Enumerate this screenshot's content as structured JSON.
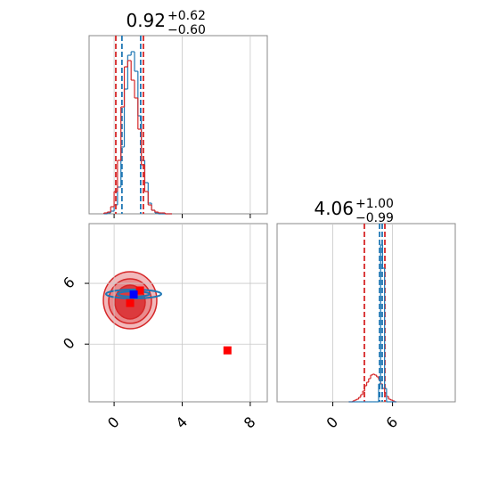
{
  "chart_data": [
    {
      "type": "histogram",
      "title": {
        "text": "0.92",
        "upper": "+0.62",
        "lower": "−0.60"
      },
      "bins": [
        -0.6,
        -0.4,
        -0.2,
        0,
        0.2,
        0.4,
        0.6,
        0.8,
        1.0,
        1.2,
        1.4,
        1.6,
        1.8,
        2.0,
        2.2,
        2.4,
        2.6,
        2.8,
        3.0,
        3.2,
        3.4
      ],
      "series": [
        {
          "color": "#1f77b4",
          "values": [
            0,
            1,
            3,
            10,
            30,
            75,
            140,
            178,
            182,
            160,
            110,
            60,
            35,
            12,
            4,
            1,
            0,
            0,
            0,
            0
          ],
          "quantiles": [
            0.46,
            1.56
          ]
        },
        {
          "color": "#d62728",
          "values": [
            1,
            2,
            8,
            25,
            60,
            120,
            165,
            172,
            150,
            130,
            95,
            55,
            25,
            10,
            4,
            2,
            1,
            1,
            0,
            0
          ],
          "quantiles": [
            0.1,
            1.72
          ]
        }
      ],
      "xlim": [
        -1.47,
        9.0
      ],
      "ylim": [
        0,
        200
      ],
      "xticks": [
        0,
        4,
        8
      ],
      "grid": true
    },
    {
      "type": "scatter",
      "series": [
        {
          "color": "#ff0000",
          "x": [
            1.52,
            0.94,
            6.66
          ],
          "values": [
            5.3,
            4.06,
            -0.62
          ]
        },
        {
          "color": "#0000ff",
          "x": [
            1.15
          ],
          "values": [
            4.9
          ]
        }
      ],
      "xlim": [
        -1.47,
        9.0
      ],
      "ylim": [
        -5.7,
        11.9
      ],
      "xticks": [
        0,
        4,
        8
      ],
      "yticks": [
        0,
        6
      ],
      "grid": true
    },
    {
      "type": "histogram",
      "title": {
        "text": "4.06",
        "upper": "+1.00",
        "lower": "−0.99"
      },
      "bins": [
        1.6,
        1.8,
        2.0,
        2.2,
        2.4,
        2.6,
        2.8,
        3.0,
        3.2,
        3.4,
        3.6,
        3.8,
        4.0,
        4.2,
        4.4,
        4.6,
        4.8,
        5.0,
        5.2,
        5.4,
        5.6,
        5.8,
        6.0,
        6.2,
        6.4
      ],
      "series": [
        {
          "color": "#d62728",
          "values": [
            0,
            0,
            1,
            2,
            3,
            5,
            8,
            12,
            18,
            22,
            26,
            30,
            31,
            30,
            28,
            25,
            20,
            15,
            10,
            6,
            3,
            2,
            1,
            0
          ],
          "quantiles": [
            3.17,
            5.23
          ]
        },
        {
          "color": "#1f77b4",
          "values": [
            0,
            0,
            0,
            0,
            0,
            0,
            0,
            0,
            0,
            0,
            0,
            0,
            0,
            0,
            0,
            20,
            176,
            150,
            15,
            0,
            0,
            0,
            0,
            0
          ],
          "quantiles": [
            4.7,
            4.96
          ]
        }
      ],
      "xlim": [
        -5.6,
        12.3
      ],
      "ylim": [
        0,
        200
      ],
      "xticks": [
        0,
        6
      ],
      "grid": true
    }
  ]
}
